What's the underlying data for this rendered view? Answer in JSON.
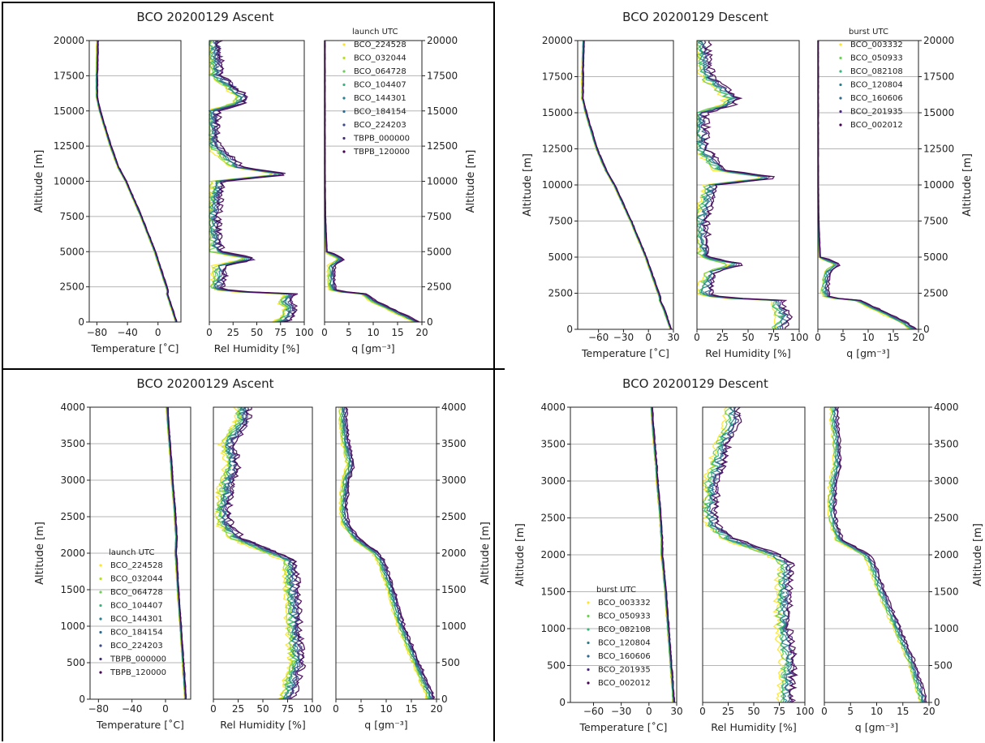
{
  "palette": [
    "#fde725",
    "#b5de2b",
    "#6ece58",
    "#35b779",
    "#1f9e89",
    "#26828e",
    "#31688e",
    "#3e4989",
    "#482878",
    "#440154"
  ],
  "labels": {
    "altitude": "Altitude [m]",
    "temperature": "Temperature [$^\\circ$C]",
    "temperature_display": "Temperature [ ˚C]",
    "rh": "Rel Humidity [%]",
    "q": "q [gm⁻³]"
  },
  "chart_data": [
    {
      "type": "line",
      "title": "BCO 20200129 Ascent",
      "ylabel": "Altitude [m]",
      "ylim": [
        0,
        20000
      ],
      "yticks": [
        "0",
        "2500",
        "5000",
        "7500",
        "10000",
        "12500",
        "15000",
        "17500",
        "20000"
      ],
      "grid": "horizontal",
      "panels": [
        {
          "xlabel": "Temperature [˚C]",
          "xlim": [
            -90,
            30
          ],
          "xticks": [
            "-80",
            "-40",
            "0"
          ]
        },
        {
          "xlabel": "Rel Humidity [%]",
          "xlim": [
            0,
            100
          ],
          "xticks": [
            "0",
            "25",
            "50",
            "75",
            "100"
          ]
        },
        {
          "xlabel": "q [gm⁻³]",
          "xlim": [
            0,
            20
          ],
          "xticks": [
            "0",
            "5",
            "10",
            "15",
            "20"
          ]
        }
      ],
      "legend": {
        "title": "launch UTC",
        "position": "third panel, top-right",
        "entries": [
          "BCO_224528",
          "BCO_032044",
          "BCO_064728",
          "BCO_104407",
          "BCO_144301",
          "BCO_184154",
          "BCO_224203",
          "TBPB_000000",
          "TBPB_120000"
        ]
      },
      "profiles": {
        "altitude": [
          0,
          500,
          1000,
          1500,
          2000,
          2200,
          2500,
          3000,
          4000,
          4500,
          5000,
          7500,
          10000,
          10500,
          11000,
          12500,
          15000,
          15500,
          16000,
          17500,
          20000
        ],
        "temperature": [
          24,
          21,
          18,
          15,
          12,
          13,
          11,
          8,
          2,
          -1,
          -4,
          -22,
          -42,
          -47,
          -52,
          -62,
          -76,
          -78,
          -80,
          -80,
          -79
        ],
        "rh": [
          75,
          85,
          85,
          80,
          85,
          15,
          8,
          10,
          12,
          45,
          8,
          4,
          10,
          80,
          30,
          5,
          4,
          30,
          35,
          8,
          5
        ],
        "q": [
          19,
          16,
          13,
          10,
          8,
          2,
          1.5,
          1.5,
          1.5,
          3.5,
          0.4,
          0.1,
          0.02,
          0.02,
          0.01,
          0.005,
          0.005,
          0.005,
          0.005,
          0.005,
          0.005
        ]
      }
    },
    {
      "type": "line",
      "title": "BCO 20200129 Descent",
      "ylabel": "Altitude [m]",
      "ylim": [
        0,
        20000
      ],
      "yticks": [
        "0",
        "2500",
        "5000",
        "7500",
        "10000",
        "12500",
        "15000",
        "17500",
        "20000"
      ],
      "grid": "horizontal",
      "panels": [
        {
          "xlabel": "Temperature [˚C]",
          "xlim": [
            -85,
            30
          ],
          "xticks": [
            "-60",
            "-30",
            "0",
            "30"
          ]
        },
        {
          "xlabel": "Rel Humidity [%]",
          "xlim": [
            0,
            100
          ],
          "xticks": [
            "0",
            "25",
            "50",
            "75",
            "100"
          ]
        },
        {
          "xlabel": "q [gm⁻³]",
          "xlim": [
            0,
            20
          ],
          "xticks": [
            "0",
            "5",
            "10",
            "15",
            "20"
          ]
        }
      ],
      "legend": {
        "title": "burst UTC",
        "position": "third panel, top-right",
        "entries": [
          "BCO_003332",
          "BCO_050933",
          "BCO_082108",
          "BCO_120804",
          "BCO_160606",
          "BCO_201935",
          "BCO_002012"
        ]
      },
      "profiles": {
        "altitude": [
          0,
          500,
          1000,
          1500,
          2000,
          2200,
          2500,
          3000,
          4000,
          4500,
          5000,
          7500,
          10000,
          10500,
          11000,
          12500,
          15000,
          15500,
          16000,
          17500,
          20000
        ],
        "temperature": [
          27,
          24,
          21,
          18,
          14,
          14,
          12,
          9,
          3,
          0,
          -3,
          -21,
          -41,
          -46,
          -51,
          -62,
          -75,
          -77,
          -79,
          -79,
          -78
        ],
        "rh": [
          80,
          85,
          85,
          80,
          80,
          20,
          8,
          10,
          15,
          40,
          8,
          4,
          15,
          75,
          25,
          5,
          4,
          30,
          35,
          10,
          5
        ],
        "q": [
          19,
          17,
          14,
          11,
          8,
          2,
          1.5,
          1.5,
          2,
          4,
          0.4,
          0.1,
          0.02,
          0.02,
          0.01,
          0.005,
          0.005,
          0.005,
          0.005,
          0.005,
          0.005
        ]
      }
    },
    {
      "type": "line",
      "title": "BCO 20200129 Ascent",
      "ylabel": "Altitude [m]",
      "ylim": [
        0,
        4000
      ],
      "yticks": [
        "0",
        "500",
        "1000",
        "1500",
        "2000",
        "2500",
        "3000",
        "3500",
        "4000"
      ],
      "grid": "horizontal",
      "panels": [
        {
          "xlabel": "Temperature [˚C]",
          "xlim": [
            -90,
            30
          ],
          "xticks": [
            "-80",
            "-40",
            "0"
          ]
        },
        {
          "xlabel": "Rel Humidity [%]",
          "xlim": [
            0,
            100
          ],
          "xticks": [
            "0",
            "25",
            "50",
            "75",
            "100"
          ]
        },
        {
          "xlabel": "q [gm⁻³]",
          "xlim": [
            0,
            20
          ],
          "xticks": [
            "0",
            "5",
            "10",
            "15",
            "20"
          ]
        }
      ],
      "legend": {
        "title": "launch UTC",
        "position": "first panel, bottom-left",
        "entries": [
          "BCO_224528",
          "BCO_032044",
          "BCO_064728",
          "BCO_104407",
          "BCO_144301",
          "BCO_184154",
          "BCO_224203",
          "TBPB_000000",
          "TBPB_120000"
        ]
      },
      "profiles": {
        "altitude": [
          0,
          500,
          1000,
          1500,
          1900,
          2000,
          2200,
          2400,
          2600,
          3000,
          3200,
          3500,
          3800,
          4000
        ],
        "temperature": [
          24,
          21,
          18,
          15,
          13,
          12,
          13,
          12,
          11,
          8,
          7,
          5,
          3,
          2
        ],
        "rh": [
          75,
          85,
          82,
          80,
          78,
          60,
          25,
          12,
          10,
          15,
          20,
          15,
          30,
          30
        ],
        "q": [
          19,
          16,
          13,
          11,
          9,
          8,
          4,
          2,
          1.5,
          2,
          3,
          2,
          1.5,
          1.5
        ]
      }
    },
    {
      "type": "line",
      "title": "BCO 20200129 Descent",
      "ylabel": "Altitude [m]",
      "ylim": [
        0,
        4000
      ],
      "yticks": [
        "0",
        "500",
        "1000",
        "1500",
        "2000",
        "2500",
        "3000",
        "3500",
        "4000"
      ],
      "grid": "horizontal",
      "panels": [
        {
          "xlabel": "Temperature [˚C]",
          "xlim": [
            -85,
            30
          ],
          "xticks": [
            "-60",
            "-30",
            "0",
            "30"
          ]
        },
        {
          "xlabel": "Rel Humidity [%]",
          "xlim": [
            0,
            100
          ],
          "xticks": [
            "0",
            "25",
            "50",
            "75",
            "100"
          ]
        },
        {
          "xlabel": "q [gm⁻³]",
          "xlim": [
            0,
            20
          ],
          "xticks": [
            "0",
            "5",
            "10",
            "15",
            "20"
          ]
        }
      ],
      "legend": {
        "title": "burst UTC",
        "position": "first panel, bottom-left",
        "entries": [
          "BCO_003332",
          "BCO_050933",
          "BCO_082108",
          "BCO_120804",
          "BCO_160606",
          "BCO_201935",
          "BCO_002012"
        ]
      },
      "profiles": {
        "altitude": [
          0,
          500,
          1000,
          1500,
          1900,
          2000,
          2200,
          2400,
          2600,
          3000,
          3200,
          3500,
          3800,
          4000
        ],
        "temperature": [
          27,
          24,
          21,
          18,
          15,
          14,
          14,
          13,
          12,
          9,
          8,
          6,
          4,
          3
        ],
        "rh": [
          82,
          85,
          80,
          80,
          82,
          70,
          30,
          10,
          8,
          10,
          15,
          20,
          30,
          30
        ],
        "q": [
          19,
          17,
          14,
          11,
          9,
          8,
          3,
          2,
          1.5,
          1.8,
          2.5,
          2.5,
          2,
          2
        ]
      }
    }
  ]
}
